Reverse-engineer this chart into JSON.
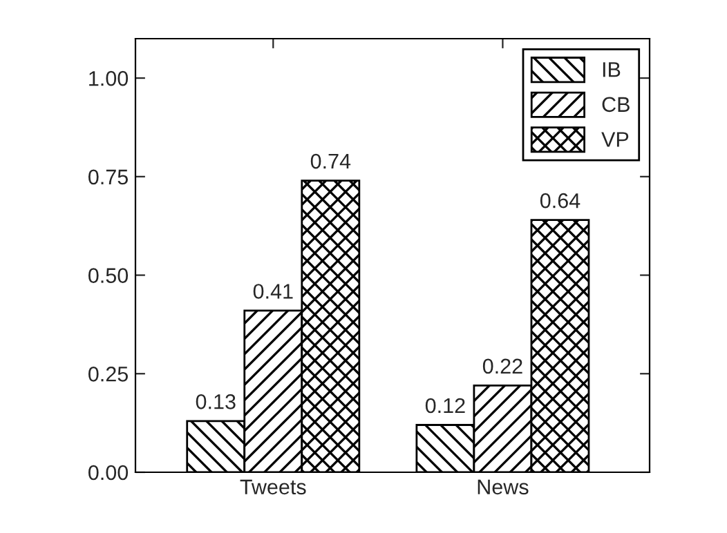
{
  "chart_data": {
    "type": "bar",
    "categories": [
      "Tweets",
      "News"
    ],
    "series": [
      {
        "name": "IB",
        "color": "#000000",
        "values": [
          0.13,
          0.12
        ]
      },
      {
        "name": "CB",
        "color": "#000000",
        "values": [
          0.41,
          0.22
        ]
      },
      {
        "name": "VP",
        "color": "#000000",
        "values": [
          0.74,
          0.64
        ]
      }
    ],
    "ylim": [
      0,
      1.1
    ],
    "yticks": [
      {
        "value": 0,
        "label": "0.00"
      },
      {
        "value": 0.25,
        "label": "0.25"
      },
      {
        "value": 0.5,
        "label": "0.50"
      },
      {
        "value": 0.75,
        "label": "0.75"
      },
      {
        "value": 1.0,
        "label": "1.00"
      }
    ],
    "data_labels": true,
    "legend": "top right",
    "grid": false
  }
}
